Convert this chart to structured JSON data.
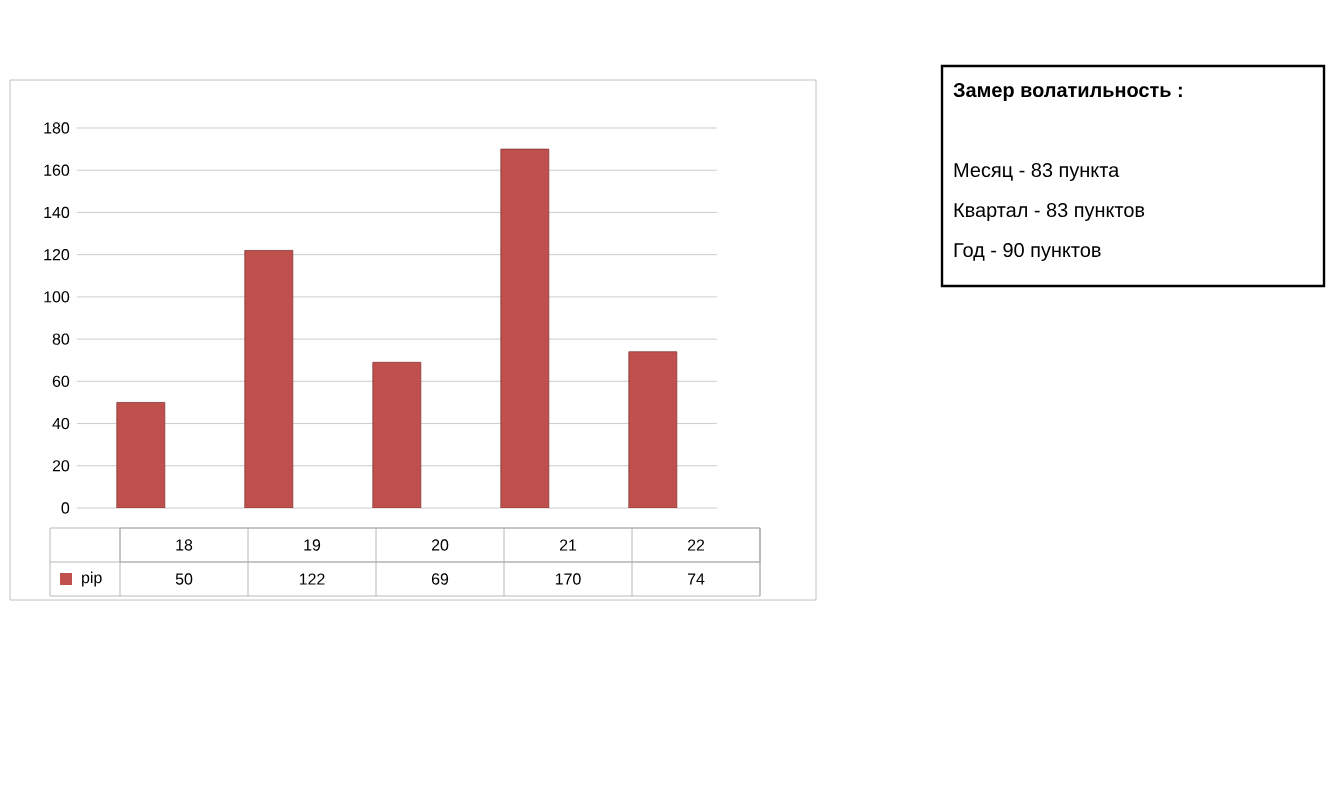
{
  "chart_data": {
    "type": "bar",
    "categories": [
      "18",
      "19",
      "20",
      "21",
      "22"
    ],
    "series": [
      {
        "name": "pip",
        "color": "#c0504d",
        "values": [
          50,
          122,
          69,
          170,
          74
        ]
      }
    ],
    "ylim": [
      0,
      180
    ],
    "yticks": [
      0,
      20,
      40,
      60,
      80,
      100,
      120,
      140,
      160,
      180
    ],
    "grid": "y",
    "legend": "bottom",
    "data_labels": true,
    "annotations": [
      "Замер  волатильность  :",
      "Месяц - 83 пункта",
      "Квартал - 83 пунктов",
      "Год - 90 пунктов"
    ]
  }
}
